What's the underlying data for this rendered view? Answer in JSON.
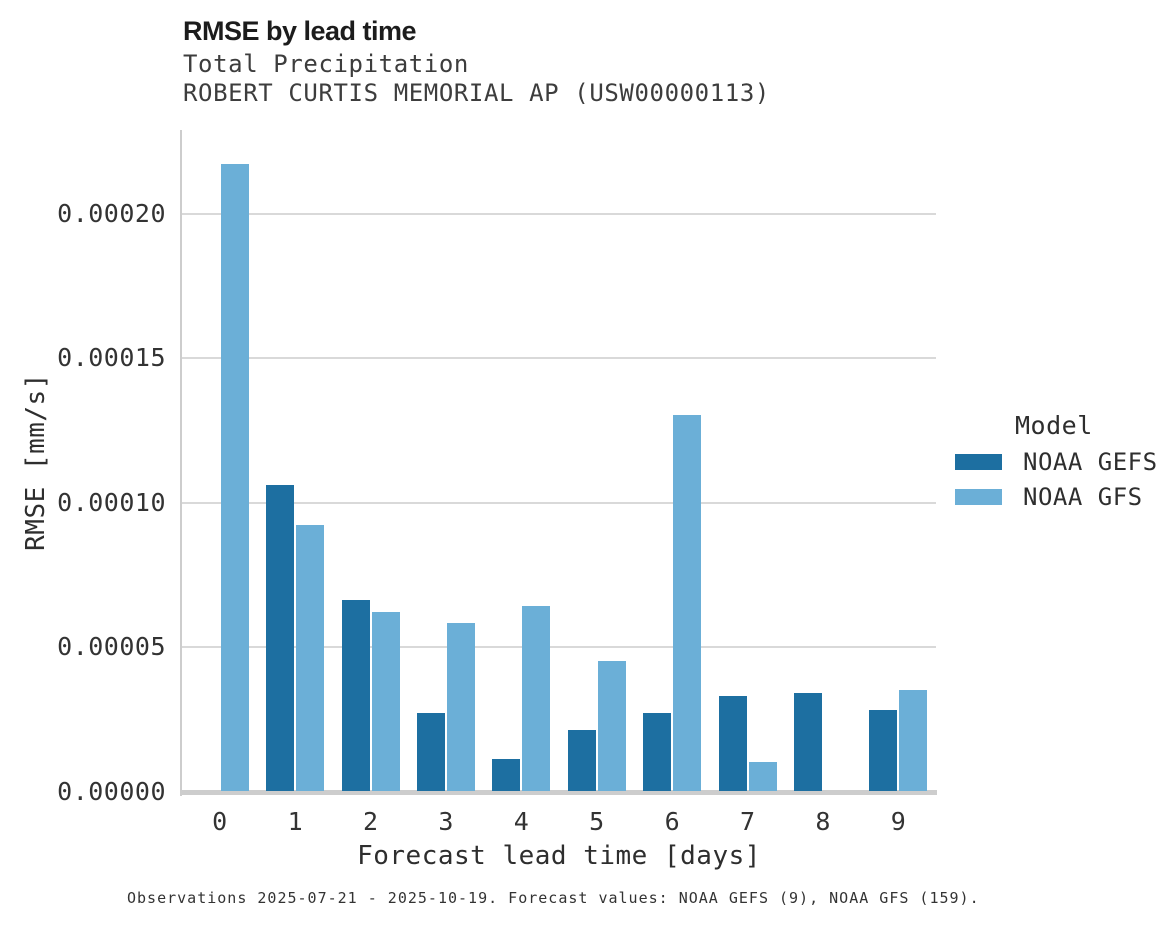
{
  "footnote": "Observations 2025-07-21 - 2025-10-19. Forecast values: NOAA GEFS (9), NOAA GFS (159).",
  "colors": {
    "gefs_dark_blue": "#1D6FA1",
    "gfs_light_blue": "#6BAFD7",
    "gridline_gray": "#d9d9d9",
    "axis_gray": "#cdcdcd",
    "title_text": "#1c1c1c",
    "body_text": "#2e2e2e"
  },
  "chart_data": {
    "type": "bar",
    "title": "RMSE by lead time",
    "subtitle": "Total Precipitation",
    "station": "ROBERT CURTIS MEMORIAL AP (USW00000113)",
    "xlabel": "Forecast lead time [days]",
    "ylabel": "RMSE [mm/s]",
    "legend_title": "Model",
    "legend_position": "right",
    "grid": "horizontal",
    "categories": [
      0,
      1,
      2,
      3,
      4,
      5,
      6,
      7,
      8,
      9
    ],
    "series": [
      {
        "name": "NOAA GEFS",
        "color": "#1D6FA1",
        "values": [
          null,
          0.000106,
          6.6e-05,
          2.7e-05,
          1.1e-05,
          2.1e-05,
          2.7e-05,
          3.3e-05,
          3.4e-05,
          2.8e-05
        ]
      },
      {
        "name": "NOAA GFS",
        "color": "#6BAFD7",
        "values": [
          0.000217,
          9.2e-05,
          6.2e-05,
          5.8e-05,
          6.4e-05,
          4.5e-05,
          0.00013,
          1e-05,
          null,
          3.5e-05
        ]
      }
    ],
    "ylim": [
      0,
      0.000229
    ],
    "yticks": [
      0,
      5e-05,
      0.0001,
      0.00015,
      0.0002
    ],
    "ytick_labels": [
      "0.00000",
      "0.00005",
      "0.00010",
      "0.00015",
      "0.00020"
    ]
  }
}
